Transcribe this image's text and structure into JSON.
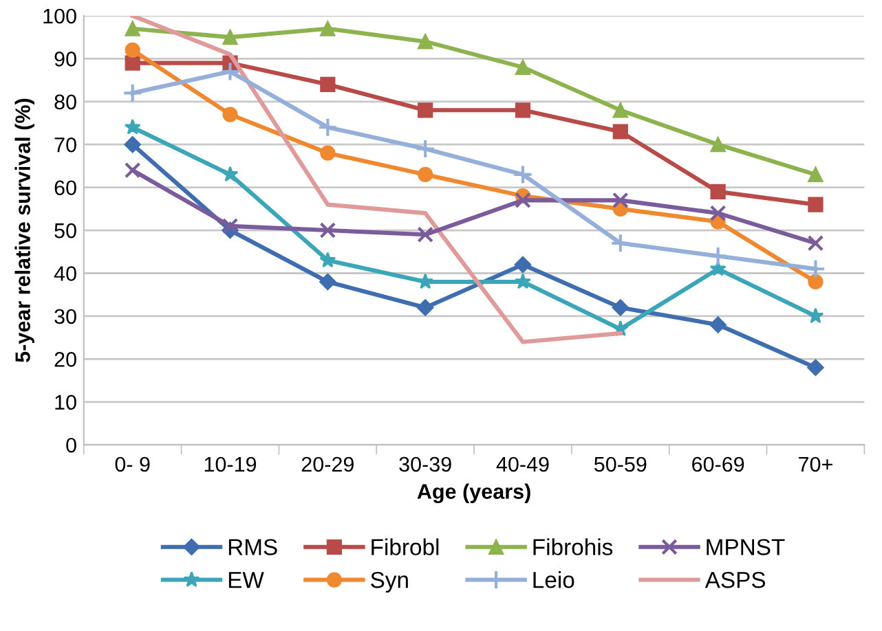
{
  "chart_data": {
    "type": "line",
    "xlabel": "Age (years)",
    "ylabel": "5-year relative survival (%)",
    "categories": [
      "0- 9",
      "10-19",
      "20-29",
      "30-39",
      "40-49",
      "50-59",
      "60-69",
      "70+"
    ],
    "ylim": [
      0,
      100
    ],
    "yticks": [
      0,
      10,
      20,
      30,
      40,
      50,
      60,
      70,
      80,
      90,
      100
    ],
    "grid": "y",
    "legend": "bottom",
    "series": [
      {
        "name": "RMS",
        "color": "#3e6eb0",
        "marker": "diamond",
        "values": [
          70,
          50,
          38,
          32,
          42,
          32,
          28,
          18
        ]
      },
      {
        "name": "Fibrobl",
        "color": "#b84a47",
        "marker": "square",
        "values": [
          89,
          89,
          84,
          78,
          78,
          73,
          59,
          56
        ]
      },
      {
        "name": "Fibrohis",
        "color": "#8db34e",
        "marker": "triangle",
        "values": [
          97,
          95,
          97,
          94,
          88,
          78,
          70,
          63
        ]
      },
      {
        "name": "MPNST",
        "color": "#7a5c9c",
        "marker": "cross",
        "values": [
          64,
          51,
          50,
          49,
          57,
          57,
          54,
          47
        ]
      },
      {
        "name": "EW",
        "color": "#3aa6b8",
        "marker": "star",
        "values": [
          74,
          63,
          43,
          38,
          38,
          27,
          41,
          30
        ]
      },
      {
        "name": "Syn",
        "color": "#f0882f",
        "marker": "circle",
        "values": [
          92,
          77,
          68,
          63,
          58,
          55,
          52,
          38
        ]
      },
      {
        "name": "Leio",
        "color": "#94afd9",
        "marker": "plus",
        "values": [
          82,
          87,
          74,
          69,
          63,
          47,
          44,
          41
        ]
      },
      {
        "name": "ASPS",
        "color": "#e09a9a",
        "marker": "none",
        "values": [
          100,
          91,
          56,
          54,
          24,
          26,
          null,
          null
        ]
      }
    ]
  }
}
